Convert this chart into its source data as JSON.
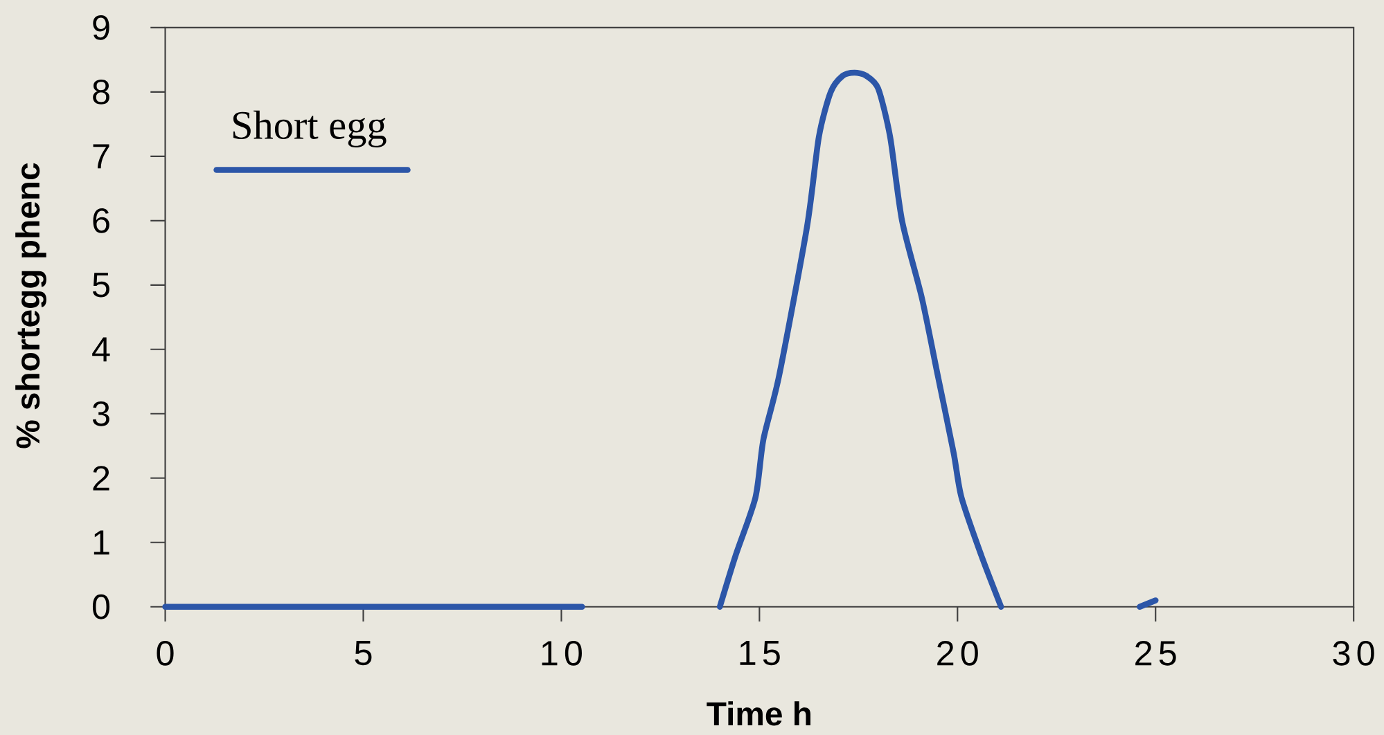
{
  "chart_data": {
    "type": "line",
    "xlabel": "Time h",
    "ylabel": "% shortegg phenc",
    "xlim": [
      0,
      30
    ],
    "ylim": [
      0,
      9
    ],
    "xticks": [
      0,
      5,
      10,
      15,
      20,
      25,
      30
    ],
    "yticks": [
      0,
      1,
      2,
      3,
      4,
      5,
      6,
      7,
      8,
      9
    ],
    "legend": "top left",
    "marker": "none",
    "line_style": "solid",
    "series": [
      {
        "name": "Short egg",
        "color": "#2c56a8",
        "x": [
          0,
          5,
          10,
          10.5,
          12,
          14.0,
          14.4,
          14.9,
          15.1,
          15.5,
          16.2,
          16.5,
          16.8,
          17.1,
          17.4,
          17.7,
          18.0,
          18.3,
          18.6,
          19.1,
          19.5,
          19.9,
          20.1,
          20.6,
          21.1,
          23,
          24.6,
          25
        ],
        "values": [
          0,
          0,
          0,
          0,
          null,
          0,
          0.8,
          1.7,
          2.6,
          3.6,
          5.9,
          7.3,
          8.0,
          8.25,
          8.3,
          8.25,
          8.05,
          7.3,
          6.0,
          4.8,
          3.6,
          2.4,
          1.7,
          0.8,
          0,
          null,
          0,
          0.1
        ]
      }
    ]
  }
}
